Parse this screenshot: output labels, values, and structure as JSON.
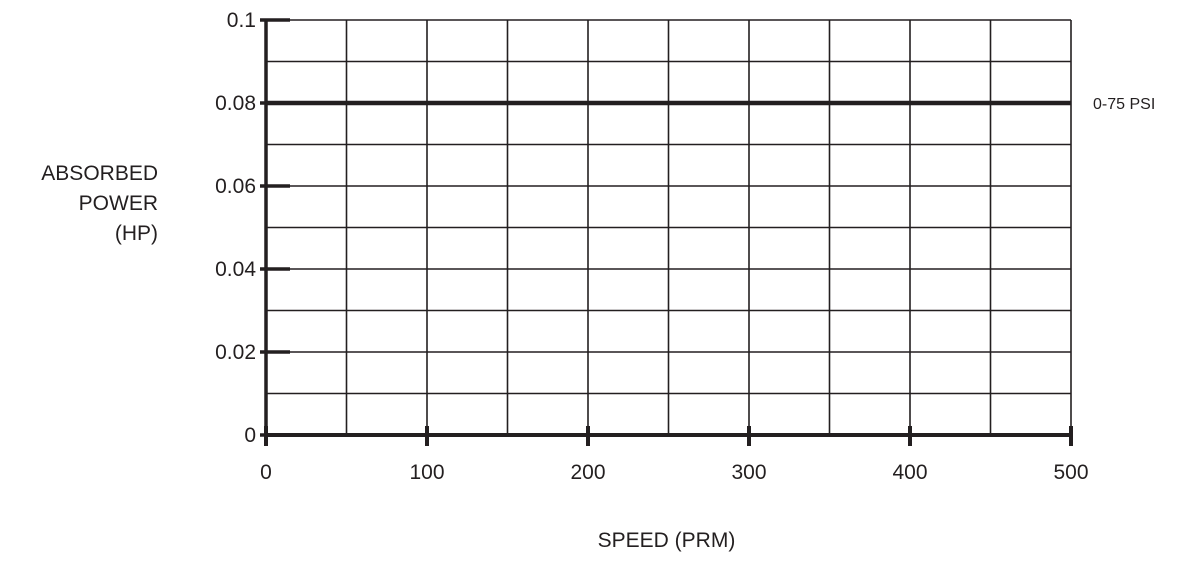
{
  "chart_data": {
    "type": "line",
    "title": "",
    "xlabel": "SPEED (PRM)",
    "ylabel": [
      "ABSORBED",
      "POWER",
      "(HP)"
    ],
    "xlim": [
      0,
      500
    ],
    "ylim": [
      0,
      0.1
    ],
    "x_ticks": [
      0,
      100,
      200,
      300,
      400,
      500
    ],
    "x_tick_labels": [
      "0",
      "100",
      "200",
      "300",
      "400",
      "500"
    ],
    "y_ticks": [
      0,
      0.02,
      0.04,
      0.06,
      0.08,
      0.1
    ],
    "y_tick_labels": [
      "0",
      "0.02",
      "0.04",
      "0.06",
      "0.08",
      "0.1"
    ],
    "grid": true,
    "x_minor_step": 50,
    "y_minor_step": 0.01,
    "series": [
      {
        "name": "0-75 PSI",
        "x": [
          0,
          500
        ],
        "y": [
          0.08,
          0.08
        ]
      }
    ],
    "colors": {
      "line": "#231f20",
      "grid": "#231f20",
      "background": "#ffffff"
    }
  }
}
